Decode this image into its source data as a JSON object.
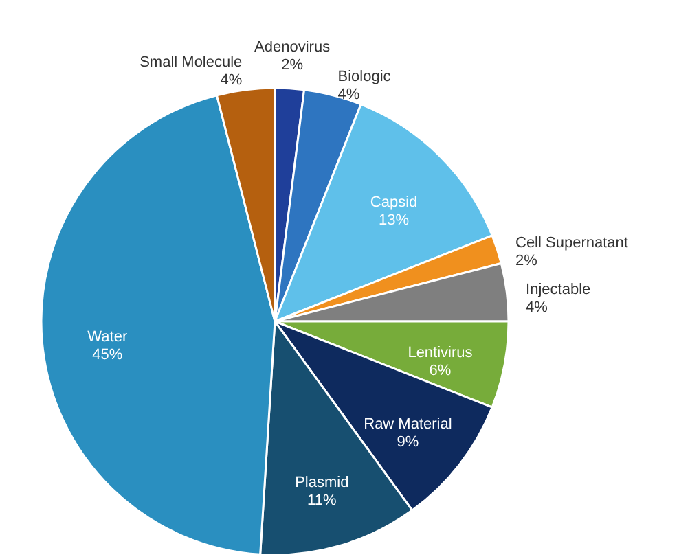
{
  "chart_data": {
    "type": "pie",
    "categories": [
      "Adenovirus",
      "Biologic",
      "Capsid",
      "Cell Supernatant",
      "Injectable",
      "Lentivirus",
      "Raw Material",
      "Plasmid",
      "Water",
      "Small Molecule"
    ],
    "values": [
      2,
      4,
      13,
      2,
      4,
      6,
      9,
      11,
      45,
      4
    ],
    "value_labels": [
      "2%",
      "4%",
      "13%",
      "2%",
      "4%",
      "6%",
      "9%",
      "11%",
      "45%",
      "4%"
    ],
    "colors": [
      "#1f3f9a",
      "#2e75c0",
      "#5fc0ea",
      "#f0901e",
      "#7f7f7f",
      "#77ac3a",
      "#0e2a5e",
      "#174f70",
      "#2a8fc0",
      "#b5600f"
    ]
  }
}
